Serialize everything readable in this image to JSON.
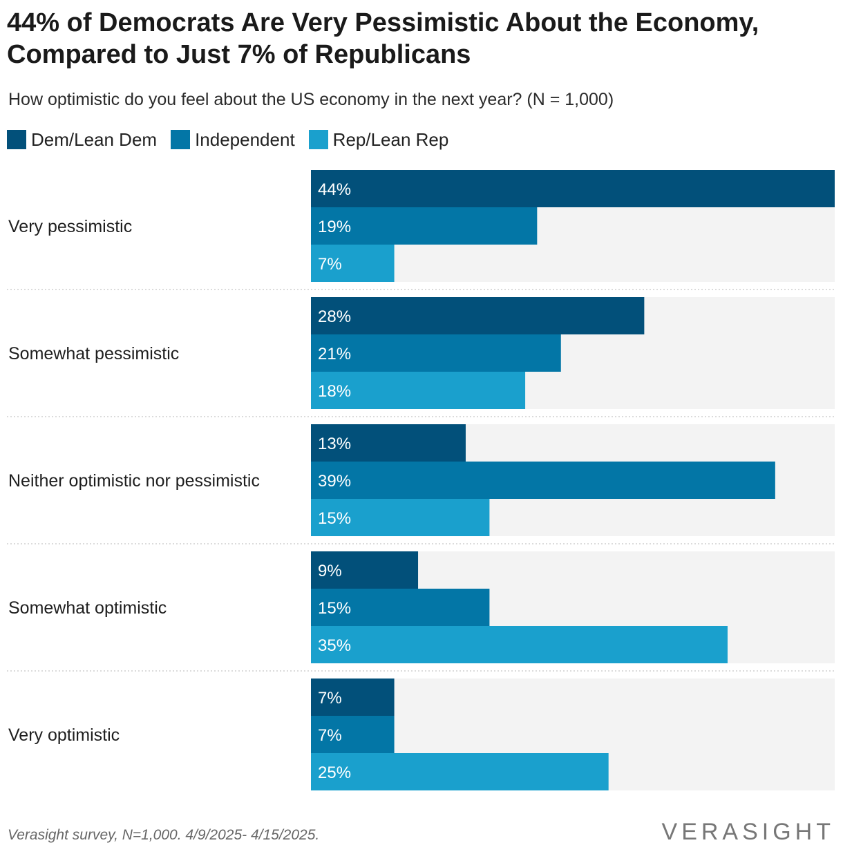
{
  "chart_data": {
    "type": "bar",
    "orientation": "horizontal",
    "title": "44% of Democrats Are Very Pessimistic About the Economy, Compared to Just 7% of Republicans",
    "subtitle": "How optimistic do you feel about the US economy in the next year? (N = 1,000)",
    "categories": [
      "Very pessimistic",
      "Somewhat pessimistic",
      "Neither optimistic nor pessimistic",
      "Somewhat optimistic",
      "Very optimistic"
    ],
    "series": [
      {
        "name": "Dem/Lean Dem",
        "color": "#02507a",
        "values": [
          44,
          28,
          13,
          9,
          7
        ]
      },
      {
        "name": "Independent",
        "color": "#0376a6",
        "values": [
          19,
          21,
          39,
          15,
          7
        ]
      },
      {
        "name": "Rep/Lean Rep",
        "color": "#1aa0cd",
        "values": [
          7,
          18,
          15,
          35,
          25
        ]
      }
    ],
    "value_suffix": "%",
    "xlim": [
      0,
      44
    ],
    "legend_position": "top-left",
    "track_color": "#f3f3f3"
  },
  "footer": {
    "source": "Verasight survey, N=1,000. 4/9/2025- 4/15/2025.",
    "logo": "VERASIGHT"
  }
}
